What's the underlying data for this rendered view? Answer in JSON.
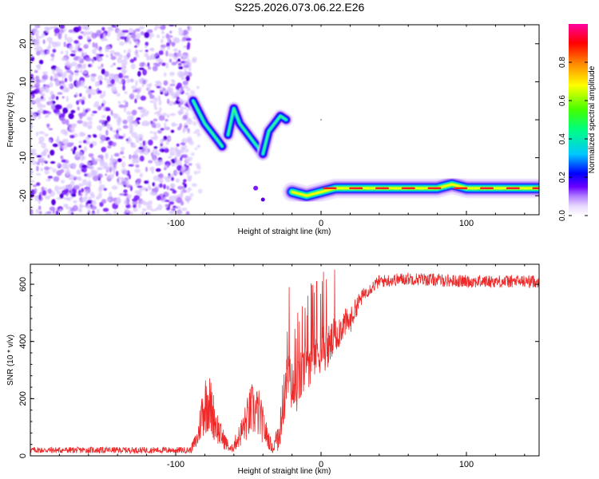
{
  "title": "S225.2026.073.06.22.E26",
  "chart_data": [
    {
      "id": "spectrogram",
      "type": "heatmap",
      "xlabel": "Height of straight line (km)",
      "ylabel": "Frequency (Hz)",
      "xlim": [
        -200,
        150
      ],
      "ylim": [
        -25,
        25
      ],
      "x_ticks": [
        -100,
        0,
        100
      ],
      "y_ticks": [
        20,
        10,
        0,
        -10,
        -20
      ],
      "colorbar": {
        "label": "Normalized spectral amplitude",
        "range": [
          0,
          1
        ],
        "ticks": [
          0.0,
          0.2,
          0.4,
          0.6,
          0.8
        ],
        "tick_labels": [
          "0.0",
          "0.2",
          "0.4",
          "0.6",
          "0.8"
        ],
        "colors": [
          "#ffffff",
          "#e8d8ff",
          "#b280ff",
          "#6a00ff",
          "#0000ff",
          "#00c8ff",
          "#00ff80",
          "#40ff00",
          "#ffff00",
          "#ff8000",
          "#ff0000",
          "#ff00a0"
        ]
      },
      "features": [
        {
          "name": "noise",
          "x_range": [
            -200,
            -90
          ],
          "freq_range": [
            -25,
            25
          ],
          "amplitude": [
            0.05,
            0.3
          ]
        },
        {
          "name": "signal_arc",
          "points": [
            [
              -88,
              5
            ],
            [
              -84,
              2
            ],
            [
              -80,
              -1
            ],
            [
              -76,
              -3
            ],
            [
              -72,
              -5
            ],
            [
              -68,
              -7
            ],
            [
              -64,
              -4
            ],
            [
              -60,
              3
            ],
            [
              -56,
              -1
            ],
            [
              -52,
              -3
            ],
            [
              -48,
              -5
            ],
            [
              -44,
              -7
            ],
            [
              -40,
              -9
            ],
            [
              -36,
              -3
            ],
            [
              -32,
              -1
            ],
            [
              -28,
              1
            ],
            [
              -24,
              0
            ]
          ],
          "amplitude": 0.5
        },
        {
          "name": "signal_tone",
          "x_range": [
            -20,
            150
          ],
          "freq": -18,
          "points": [
            [
              -20,
              -19
            ],
            [
              -10,
              -20
            ],
            [
              0,
              -19
            ],
            [
              10,
              -18
            ],
            [
              40,
              -18
            ],
            [
              80,
              -18
            ],
            [
              90,
              -17
            ],
            [
              100,
              -18
            ],
            [
              150,
              -18
            ]
          ],
          "amplitude": 0.85
        }
      ]
    },
    {
      "id": "snr",
      "type": "line",
      "xlabel": "Height of straight line (km)",
      "ylabel": "SNR (10 * v/v)",
      "xlim": [
        -200,
        150
      ],
      "ylim": [
        0,
        670
      ],
      "x_ticks": [
        -100,
        0,
        100
      ],
      "y_ticks": [
        0,
        200,
        400,
        600
      ],
      "line_color": "#ee2a2a",
      "baseline": [
        [
          -200,
          20
        ],
        [
          -90,
          20
        ],
        [
          -85,
          60
        ],
        [
          -82,
          150
        ],
        [
          -78,
          200
        ],
        [
          -70,
          80
        ],
        [
          -62,
          20
        ],
        [
          -55,
          80
        ],
        [
          -48,
          160
        ],
        [
          -43,
          150
        ],
        [
          -38,
          80
        ],
        [
          -33,
          20
        ],
        [
          -28,
          120
        ],
        [
          -23,
          280
        ],
        [
          -18,
          220
        ],
        [
          -12,
          300
        ],
        [
          -6,
          350
        ],
        [
          0,
          380
        ],
        [
          5,
          380
        ],
        [
          10,
          420
        ],
        [
          15,
          460
        ],
        [
          20,
          470
        ],
        [
          25,
          530
        ],
        [
          30,
          570
        ],
        [
          40,
          610
        ],
        [
          60,
          620
        ],
        [
          100,
          610
        ],
        [
          150,
          610
        ]
      ],
      "peaks": [
        [
          -22,
          590
        ],
        [
          -15,
          470
        ],
        [
          -9,
          560
        ],
        [
          -3,
          610
        ]
      ]
    }
  ]
}
